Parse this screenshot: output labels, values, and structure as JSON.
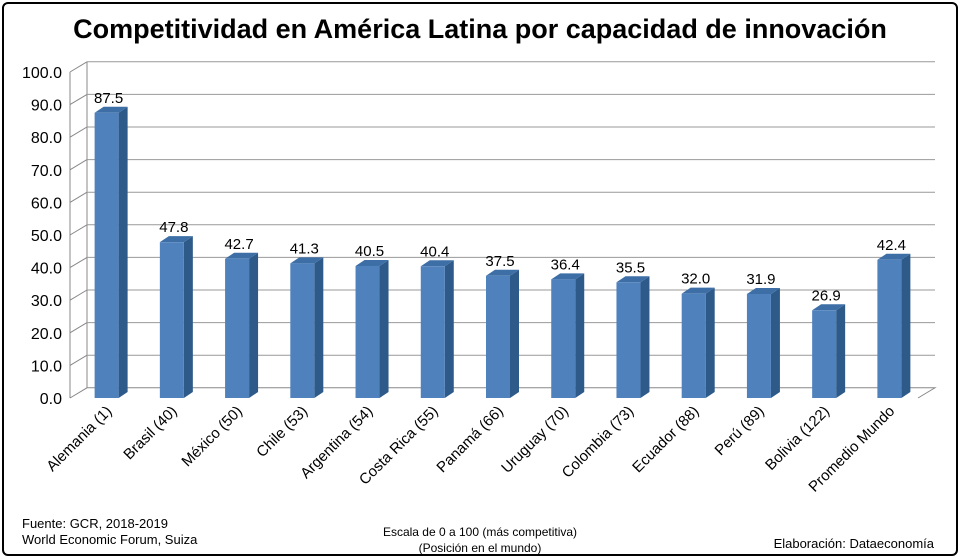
{
  "title": "Competitividad en América Latina por capacidad de innovación",
  "footer": {
    "source_line1": "Fuente:  GCR, 2018-2019",
    "source_line2": "World Economic Forum, Suiza",
    "scale_line1": "Escala de 0 a 100 (más competitiva)",
    "scale_line2": "(Posición en el mundo)",
    "credit": "Elaboración: Dataeconomía"
  },
  "chart_data": {
    "type": "bar",
    "title": "Competitividad en América Latina por capacidad de innovación",
    "categories": [
      "Alemania (1)",
      "Brasil (40)",
      "México (50)",
      "Chile (53)",
      "Argentina (54)",
      "Costa Rica (55)",
      "Panamá (66)",
      "Uruguay (70)",
      "Colombia (73)",
      "Ecuador (88)",
      "Perú (89)",
      "Bolivia (122)",
      "Promedio Mundo"
    ],
    "values": [
      87.5,
      47.8,
      42.7,
      41.3,
      40.5,
      40.4,
      37.5,
      36.4,
      35.5,
      32.0,
      31.9,
      26.9,
      42.4
    ],
    "value_labels": [
      "87.5",
      "47.8",
      "42.7",
      "41.3",
      "40.5",
      "40.4",
      "37.5",
      "36.4",
      "35.5",
      "32.0",
      "31.9",
      "26.9",
      "42.4"
    ],
    "y_ticks": [
      "0.0",
      "10.0",
      "20.0",
      "30.0",
      "40.0",
      "50.0",
      "60.0",
      "70.0",
      "80.0",
      "90.0",
      "100.0"
    ],
    "ylim": [
      0,
      100
    ],
    "grid": true,
    "bar_color": "#4f81bd",
    "bar_side_color": "#2e5a8a",
    "bar_top_color": "#3d6fa6"
  }
}
